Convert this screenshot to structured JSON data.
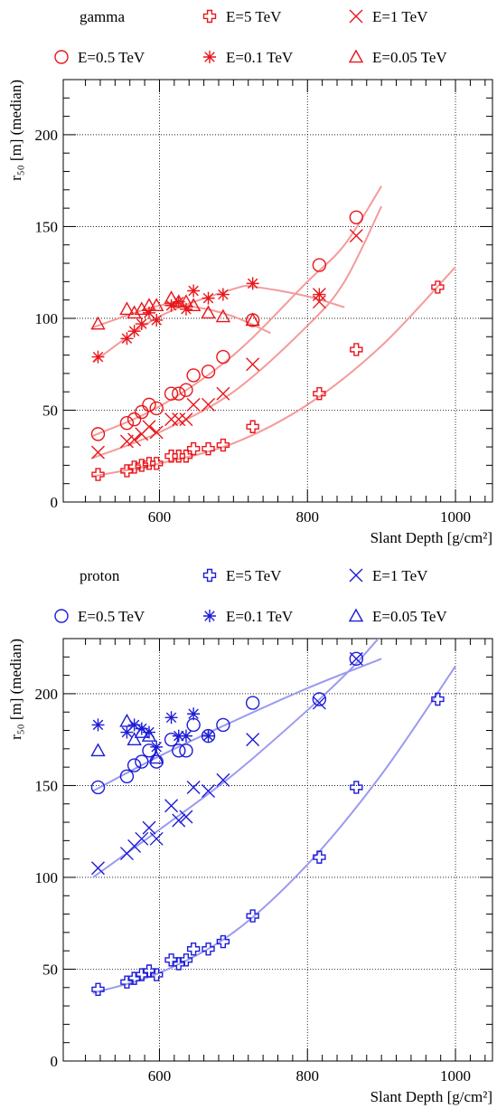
{
  "chart_data": [
    {
      "type": "scatter",
      "particle": "gamma",
      "color": "#e8161b",
      "fit_color": "#f59a9a",
      "xlabel": "Slant Depth [g/cm²]",
      "ylabel": "r₅₀ [m] (median)",
      "xlim": [
        470,
        1050
      ],
      "ylim": [
        0,
        230
      ],
      "xticks": [
        600,
        800,
        1000
      ],
      "yticks": [
        0,
        50,
        100,
        150,
        200
      ],
      "grid": true,
      "legend_position": "top",
      "series": [
        {
          "name": "E=5 TeV",
          "marker": "cross-open",
          "points": [
            [
              517,
              15
            ],
            [
              556,
              17
            ],
            [
              566,
              19
            ],
            [
              576,
              20
            ],
            [
              586,
              21
            ],
            [
              596,
              21
            ],
            [
              616,
              25
            ],
            [
              626,
              25
            ],
            [
              636,
              25
            ],
            [
              646,
              29
            ],
            [
              666,
              29
            ],
            [
              686,
              31
            ],
            [
              726,
              41
            ],
            [
              816,
              59
            ],
            [
              866,
              83
            ],
            [
              976,
              117
            ]
          ],
          "fit": [
            [
              510,
              14
            ],
            [
              600,
              21
            ],
            [
              700,
              32
            ],
            [
              800,
              53
            ],
            [
              900,
              85
            ],
            [
              1000,
              128
            ]
          ]
        },
        {
          "name": "E=1 TeV",
          "marker": "x",
          "points": [
            [
              517,
              27
            ],
            [
              556,
              33
            ],
            [
              566,
              34
            ],
            [
              576,
              37
            ],
            [
              586,
              41
            ],
            [
              596,
              38
            ],
            [
              616,
              45
            ],
            [
              626,
              45
            ],
            [
              636,
              45
            ],
            [
              646,
              53
            ],
            [
              666,
              53
            ],
            [
              686,
              59
            ],
            [
              726,
              75
            ],
            [
              816,
              109
            ],
            [
              816,
              113
            ],
            [
              866,
              145
            ]
          ],
          "fit": [
            [
              510,
              24
            ],
            [
              600,
              38
            ],
            [
              700,
              60
            ],
            [
              800,
              96
            ],
            [
              850,
              120
            ],
            [
              900,
              161
            ]
          ]
        },
        {
          "name": "E=0.5 TeV",
          "marker": "circle-open",
          "points": [
            [
              517,
              37
            ],
            [
              556,
              43
            ],
            [
              566,
              45
            ],
            [
              576,
              49
            ],
            [
              586,
              53
            ],
            [
              596,
              51
            ],
            [
              616,
              59
            ],
            [
              626,
              59
            ],
            [
              636,
              61
            ],
            [
              646,
              69
            ],
            [
              666,
              71
            ],
            [
              686,
              79
            ],
            [
              726,
              99
            ],
            [
              816,
              129
            ],
            [
              866,
              155
            ]
          ],
          "fit": [
            [
              510,
              36
            ],
            [
              600,
              52
            ],
            [
              700,
              80
            ],
            [
              800,
              120
            ],
            [
              850,
              140
            ],
            [
              900,
              172
            ]
          ]
        },
        {
          "name": "E=0.1 TeV",
          "marker": "asterisk",
          "points": [
            [
              517,
              79
            ],
            [
              556,
              89
            ],
            [
              566,
              93
            ],
            [
              576,
              97
            ],
            [
              586,
              103
            ],
            [
              596,
              99
            ],
            [
              616,
              107
            ],
            [
              626,
              109
            ],
            [
              636,
              105
            ],
            [
              646,
              115
            ],
            [
              666,
              111
            ],
            [
              686,
              113
            ],
            [
              726,
              119
            ],
            [
              816,
              113
            ]
          ],
          "fit": [
            [
              510,
              76
            ],
            [
              600,
              101
            ],
            [
              700,
              116
            ],
            [
              730,
              117
            ],
            [
              800,
              112
            ],
            [
              850,
              106
            ]
          ]
        },
        {
          "name": "E=0.05 TeV",
          "marker": "triangle-open",
          "points": [
            [
              517,
              97
            ],
            [
              556,
              105
            ],
            [
              566,
              103
            ],
            [
              576,
              105
            ],
            [
              586,
              107
            ],
            [
              596,
              107
            ],
            [
              616,
              111
            ],
            [
              626,
              109
            ],
            [
              636,
              109
            ],
            [
              646,
              107
            ],
            [
              666,
              103
            ],
            [
              686,
              101
            ],
            [
              726,
              99
            ]
          ],
          "fit": [
            [
              510,
              95
            ],
            [
              600,
              107
            ],
            [
              650,
              106
            ],
            [
              700,
              101
            ],
            [
              750,
              92
            ]
          ]
        }
      ]
    },
    {
      "type": "scatter",
      "particle": "proton",
      "color": "#1c1cd8",
      "fit_color": "#9a9af0",
      "xlabel": "Slant Depth [g/cm²]",
      "ylabel": "r₅₀ [m] (median)",
      "xlim": [
        470,
        1050
      ],
      "ylim": [
        0,
        230
      ],
      "xticks": [
        600,
        800,
        1000
      ],
      "yticks": [
        0,
        50,
        100,
        150,
        200
      ],
      "grid": true,
      "legend_position": "top",
      "series": [
        {
          "name": "E=5 TeV",
          "marker": "cross-open",
          "points": [
            [
              517,
              39
            ],
            [
              556,
              43
            ],
            [
              566,
              45
            ],
            [
              576,
              47
            ],
            [
              586,
              49
            ],
            [
              596,
              47
            ],
            [
              616,
              55
            ],
            [
              626,
              53
            ],
            [
              636,
              55
            ],
            [
              646,
              61
            ],
            [
              666,
              61
            ],
            [
              686,
              65
            ],
            [
              726,
              79
            ],
            [
              816,
              111
            ],
            [
              866,
              149
            ],
            [
              976,
              197
            ]
          ],
          "fit": [
            [
              510,
              37
            ],
            [
              600,
              48
            ],
            [
              700,
              70
            ],
            [
              800,
              107
            ],
            [
              900,
              156
            ],
            [
              1000,
              215
            ]
          ]
        },
        {
          "name": "E=1 TeV",
          "marker": "x",
          "points": [
            [
              517,
              105
            ],
            [
              556,
              113
            ],
            [
              566,
              117
            ],
            [
              576,
              121
            ],
            [
              586,
              127
            ],
            [
              596,
              121
            ],
            [
              616,
              139
            ],
            [
              626,
              131
            ],
            [
              636,
              133
            ],
            [
              646,
              149
            ],
            [
              666,
              147
            ],
            [
              686,
              153
            ],
            [
              726,
              175
            ],
            [
              816,
              195
            ],
            [
              866,
              219
            ]
          ],
          "fit": [
            [
              510,
              100
            ],
            [
              600,
              126
            ],
            [
              700,
              156
            ],
            [
              800,
              191
            ],
            [
              860,
              214
            ],
            [
              900,
              232
            ]
          ]
        },
        {
          "name": "E=0.5 TeV",
          "marker": "circle-open",
          "points": [
            [
              517,
              149
            ],
            [
              556,
              155
            ],
            [
              566,
              161
            ],
            [
              576,
              163
            ],
            [
              586,
              169
            ],
            [
              596,
              163
            ],
            [
              616,
              175
            ],
            [
              626,
              169
            ],
            [
              636,
              169
            ],
            [
              646,
              183
            ],
            [
              666,
              177
            ],
            [
              686,
              183
            ],
            [
              726,
              195
            ],
            [
              816,
              197
            ],
            [
              866,
              219
            ]
          ],
          "fit": [
            [
              510,
              147
            ],
            [
              600,
              166
            ],
            [
              700,
              185
            ],
            [
              800,
              203
            ],
            [
              900,
              219
            ]
          ]
        },
        {
          "name": "E=0.1 TeV",
          "marker": "asterisk",
          "points": [
            [
              517,
              183
            ],
            [
              556,
              179
            ],
            [
              566,
              183
            ],
            [
              576,
              181
            ],
            [
              586,
              179
            ],
            [
              596,
              171
            ],
            [
              616,
              187
            ],
            [
              626,
              177
            ],
            [
              636,
              177
            ],
            [
              646,
              189
            ],
            [
              666,
              177
            ]
          ],
          "fit": []
        },
        {
          "name": "E=0.05 TeV",
          "marker": "triangle-open",
          "points": [
            [
              517,
              169
            ],
            [
              556,
              185
            ],
            [
              566,
              175
            ],
            [
              576,
              179
            ],
            [
              586,
              177
            ],
            [
              596,
              165
            ]
          ],
          "fit": []
        }
      ]
    }
  ]
}
